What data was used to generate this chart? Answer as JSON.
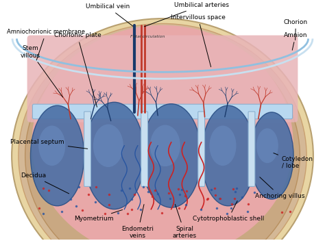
{
  "title": "",
  "background_color": "#ffffff",
  "labels": {
    "umbilical_vein": "Umbilical vein",
    "umbilical_arteries": "Umbilical arteries",
    "chorion": "Chorion",
    "amnion": "Amnion",
    "amniochorionic_membrane": "Amniochorionic membrane",
    "chorionic_plate": "Chorionic plate",
    "intervillous_space": "Intervillous space",
    "stem_villous": "Stem\nvillous",
    "placental_septum": "Placental septum",
    "decidua": "Decidua",
    "myometrium": "Myometrium",
    "endometri_veins": "Endometri\nveins",
    "spiral_arteries": "Spiral\narteries",
    "cytotrophoblastic_shell": "Cytotrophoblastic shell",
    "anchoring_villus": "Anchoring villus",
    "cotyledon_lobe": "Cotyledon\n/ lobe",
    "fetal_circulation": "Fetal circulation"
  },
  "colors": {
    "bg": "#ffffff",
    "outer_shell": "#e8d5a3",
    "myometrium": "#d4b896",
    "decidua": "#c9a882",
    "intervillous_red": "#e8a0a0",
    "cotyledon_blue": "#4a6fa5",
    "cotyledon_blue_light": "#6b8fc4",
    "blood_red": "#c0392b",
    "blood_blue_dark": "#1a3a6b",
    "chorionic_plate_color": "#b8d8f0",
    "top_region_pink": "#e8b4b8",
    "intervillous_space_color": "#e8a8a8",
    "label_color": "#000000",
    "line_color": "#000000",
    "wavy_blue": "#2855a0",
    "wavy_red": "#cc2222"
  }
}
